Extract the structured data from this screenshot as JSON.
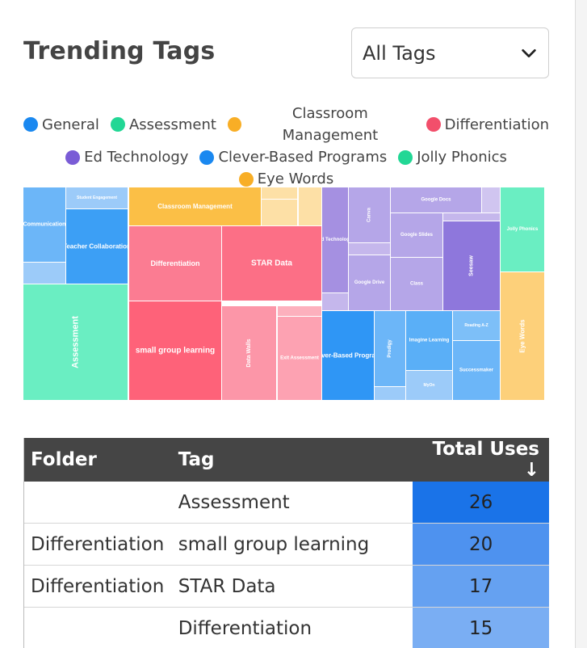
{
  "header": {
    "title": "Trending Tags"
  },
  "filter": {
    "selected": "All Tags",
    "icon": "chevron-down-icon"
  },
  "legend": {
    "rows": [
      [
        {
          "label": "General",
          "color": "#1a88f0"
        },
        {
          "label": "Assessment",
          "color": "#22d795"
        },
        {
          "label": "Classroom Management",
          "color": "#f8ae26"
        },
        {
          "label": "Differentiation",
          "color": "#f24f6b"
        }
      ],
      [
        {
          "label": "Ed Technology",
          "color": "#7a5cd6"
        },
        {
          "label": "Clever-Based Programs",
          "color": "#1a88f0"
        },
        {
          "label": "Jolly Phonics",
          "color": "#22d795"
        }
      ],
      [
        {
          "label": "Eye Words",
          "color": "#f8ae26"
        }
      ]
    ]
  },
  "treemap": {
    "tiles": [
      {
        "label": "Communication",
        "fill": "#6cb6f8",
        "rotate": false
      },
      {
        "label": "",
        "fill": "#9ccbf9",
        "rotate": false
      },
      {
        "label": "Student Engagement",
        "fill": "#9ccbf9",
        "rotate": false
      },
      {
        "label": "Teacher Collaboration",
        "fill": "#3c9ff5",
        "rotate": false
      },
      {
        "label": "Assessment",
        "fill": "#6aeec2",
        "rotate": true
      },
      {
        "label": "Classroom Management",
        "fill": "#fbbf46",
        "rotate": false
      },
      {
        "label": "",
        "fill": "#fde0a6",
        "rotate": false
      },
      {
        "label": "",
        "fill": "#fde0a6",
        "rotate": false
      },
      {
        "label": "",
        "fill": "#fde0a6",
        "rotate": false
      },
      {
        "label": "Differentiation",
        "fill": "#fb7c92",
        "rotate": false
      },
      {
        "label": "STAR Data",
        "fill": "#fc6f86",
        "rotate": false
      },
      {
        "label": "small group learning",
        "fill": "#fe6279",
        "rotate": false
      },
      {
        "label": "Data Walls",
        "fill": "#fc96a8",
        "rotate": true
      },
      {
        "label": "",
        "fill": "#fdb0bd",
        "rotate": false
      },
      {
        "label": "Exit Assessment",
        "fill": "#fda2b2",
        "rotate": false
      },
      {
        "label": "Ed Technology",
        "fill": "#a590e1",
        "rotate": false
      },
      {
        "label": "",
        "fill": "#c5b7ec",
        "rotate": false
      },
      {
        "label": "Canva",
        "fill": "#b5a6e8",
        "rotate": true
      },
      {
        "label": "",
        "fill": "#c5b7ec",
        "rotate": false
      },
      {
        "label": "Google Drive",
        "fill": "#b5a6e8",
        "rotate": false
      },
      {
        "label": "Google Docs",
        "fill": "#b5a6e8",
        "rotate": false
      },
      {
        "label": "",
        "fill": "#d0c5f0",
        "rotate": false
      },
      {
        "label": "Google Slides",
        "fill": "#b5a6e8",
        "rotate": false
      },
      {
        "label": "",
        "fill": "#c5b7ec",
        "rotate": false
      },
      {
        "label": "Seesaw",
        "fill": "#8e77dc",
        "rotate": true
      },
      {
        "label": "Class",
        "fill": "#b5a6e8",
        "rotate": false
      },
      {
        "label": "Jolly Phonics",
        "fill": "#6aeec2",
        "rotate": false
      },
      {
        "label": "Eye Words",
        "fill": "#fdd07a",
        "rotate": true
      },
      {
        "label": "Clever-Based Programs",
        "fill": "#2f96f5",
        "rotate": false
      },
      {
        "label": "Prodigy",
        "fill": "#6cb6f8",
        "rotate": true
      },
      {
        "label": "",
        "fill": "#9ccbf9",
        "rotate": false
      },
      {
        "label": "Imagine Learning",
        "fill": "#5aaff7",
        "rotate": false
      },
      {
        "label": "Reading A-Z",
        "fill": "#7dbff8",
        "rotate": false
      },
      {
        "label": "MyOn",
        "fill": "#9ccbf9",
        "rotate": false
      },
      {
        "label": "Successmaker",
        "fill": "#6cb6f8",
        "rotate": false
      }
    ]
  },
  "table": {
    "headers": {
      "folder": "Folder",
      "tag": "Tag",
      "uses": "Total Uses ↓"
    },
    "rows": [
      {
        "folder": "",
        "tag": "Assessment",
        "uses": "26",
        "shade": "#1a73e8"
      },
      {
        "folder": "Differentiation",
        "tag": "small group learning",
        "uses": "20",
        "shade": "#4e92ef"
      },
      {
        "folder": "Differentiation",
        "tag": "STAR Data",
        "uses": "17",
        "shade": "#65a1f1"
      },
      {
        "folder": "",
        "tag": "Differentiation",
        "uses": "15",
        "shade": "#7aaef3"
      }
    ]
  }
}
